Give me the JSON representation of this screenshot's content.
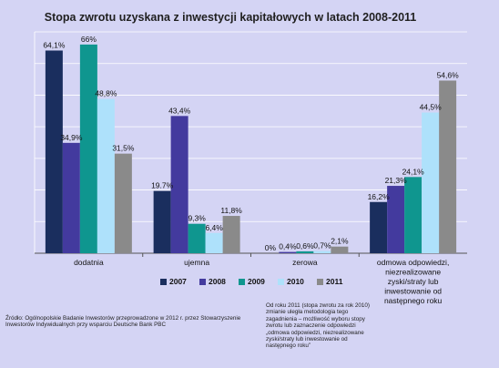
{
  "colors": {
    "background": "#d4d4f4",
    "series": [
      "#1a2e5e",
      "#433a9e",
      "#0f968f",
      "#aee1fb",
      "#8a8a8a"
    ]
  },
  "chart_data": {
    "type": "bar",
    "title": "Stopa zwrotu uzyskana z inwestycji kapitałowych w latach 2008-2011",
    "categories": [
      "dodatnia",
      "ujemna",
      "zerowa",
      "odmowa odpowiedzi, niezrealizowane zyski/straty lub inwestowanie od następnego roku"
    ],
    "series": [
      {
        "name": "2007",
        "values": [
          64.1,
          19.7,
          0,
          16.2
        ],
        "labels": [
          "64,1%",
          "19.7%",
          "0%",
          "16,2%"
        ]
      },
      {
        "name": "2008",
        "values": [
          34.9,
          43.4,
          0.4,
          21.3
        ],
        "labels": [
          "34,9%",
          "43,4%",
          "0,4%",
          "21,3%"
        ]
      },
      {
        "name": "2009",
        "values": [
          66,
          9.3,
          0.6,
          24.1
        ],
        "labels": [
          "66%",
          "9,3%",
          "0,6%",
          "24,1%"
        ]
      },
      {
        "name": "2010",
        "values": [
          48.8,
          6.4,
          0.7,
          44.5
        ],
        "labels": [
          "48,8%",
          "6,4%",
          "0,7%",
          "44,5%"
        ]
      },
      {
        "name": "2011",
        "values": [
          31.5,
          11.8,
          2.1,
          54.6
        ],
        "labels": [
          "31,5%",
          "11,8%",
          "2,1%",
          "54,6%"
        ]
      }
    ],
    "ylim": [
      0,
      70
    ],
    "grid": true,
    "legend": "bottom"
  },
  "source": "Źródło: Ogólnopolskie Badanie Inwestorów przeprowadzone w 2012 r. przez Stowarzyszenie Inwestorów Indywidualnych przy wsparciu Deutsche Bank PBC",
  "footnote": "Od roku 2011 (stopa zwrotu za rok 2010) zmianie uległa metodologia tego zagadnienia – możliwość wyboru stopy zwrotu lub zaznaczenie odpowiedzi „odmowa odpowiedzi, niezrealizowane zyski/straty lub inwestowanie od następnego roku”"
}
